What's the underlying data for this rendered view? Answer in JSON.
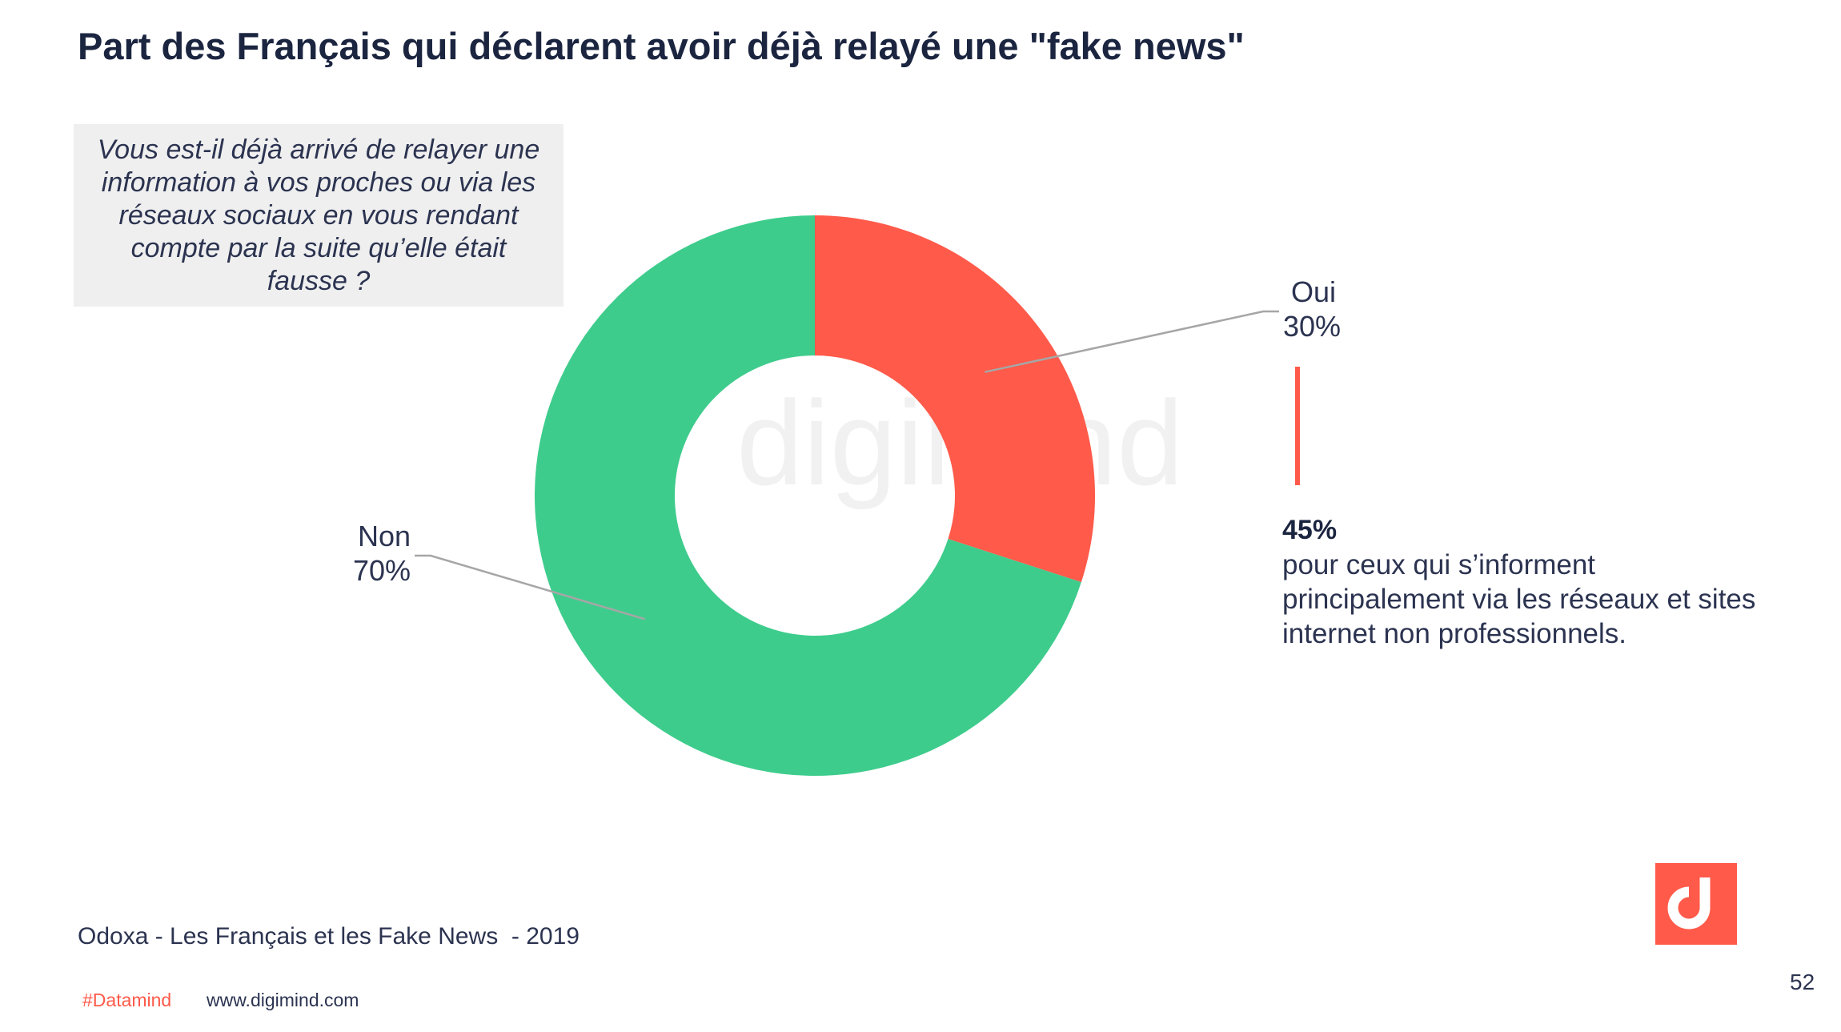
{
  "title": "Part des Français qui déclarent avoir déjà relayé une \"fake news\"",
  "question": "Vous est-il déjà arrivé de relayer une information à vos proches ou via les réseaux sociaux en vous rendant compte par la suite qu’elle était fausse ?",
  "watermark_text": "digimind",
  "callout": {
    "value": "45%",
    "text": "pour ceux qui s’informent principalement via les réseaux et sites internet non professionnels."
  },
  "source": "Odoxa - Les Français et les Fake News  - 2019",
  "footer": {
    "hashtag": "#Datamind",
    "website": "www.digimind.com",
    "page_number": "52"
  },
  "colors": {
    "oui": "#ff5a4a",
    "non": "#3ecc8c",
    "accent": "#ff5a4a"
  },
  "chart_data": {
    "type": "pie",
    "variant": "donut",
    "title": "Part des Français qui déclarent avoir déjà relayé une \"fake news\"",
    "slices": [
      {
        "label": "Oui",
        "value": 30,
        "display": "30%",
        "color": "#ff5a4a"
      },
      {
        "label": "Non",
        "value": 70,
        "display": "70%",
        "color": "#3ecc8c"
      }
    ]
  }
}
